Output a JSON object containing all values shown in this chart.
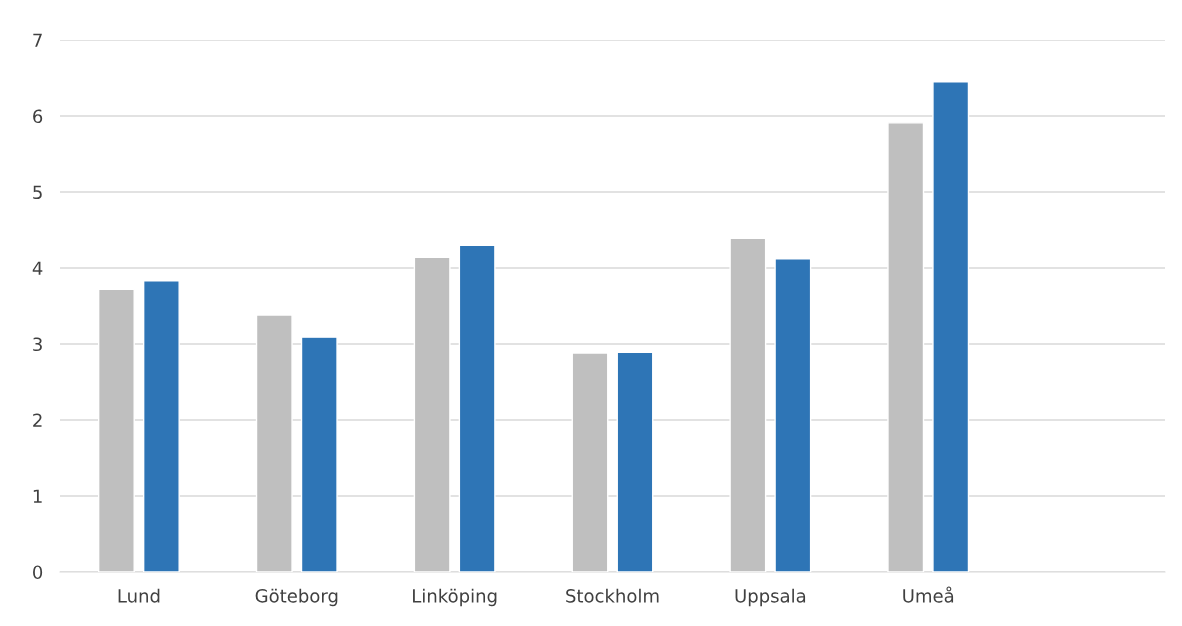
{
  "chart_data": {
    "type": "bar",
    "categories": [
      "Lund",
      "Göteborg",
      "Linköping",
      "Stockholm",
      "Uppsala",
      "Umeå",
      null
    ],
    "series": [
      {
        "color": "#bfbfbf",
        "values": [
          3.72,
          3.38,
          4.14,
          2.88,
          4.39,
          5.91,
          null
        ]
      },
      {
        "color": "#2e75b6",
        "values": [
          3.83,
          3.09,
          4.3,
          2.89,
          4.12,
          6.45,
          null
        ]
      }
    ],
    "ylim": [
      0,
      7
    ],
    "yticks": [
      0,
      1,
      2,
      3,
      4,
      5,
      6,
      7
    ],
    "grid": "y",
    "legend": false
  }
}
